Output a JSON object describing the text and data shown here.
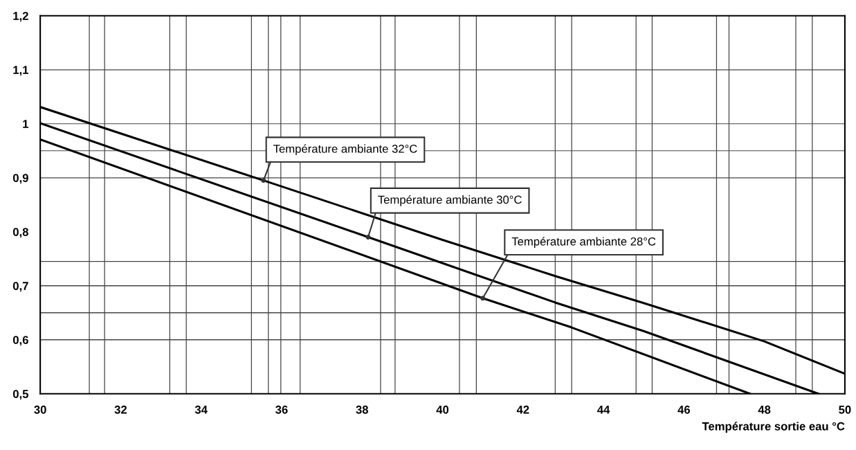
{
  "chart_data": {
    "type": "line",
    "xlabel": "Température sortie eau °C",
    "xlim": [
      30,
      50
    ],
    "ylim": [
      0.5,
      1.2
    ],
    "xticks": [
      30,
      32,
      34,
      36,
      38,
      40,
      42,
      44,
      46,
      48,
      50
    ],
    "yticks": [
      {
        "value": 0.5,
        "label": "0,5"
      },
      {
        "value": 0.6,
        "label": "0,6"
      },
      {
        "value": 0.7,
        "label": "0,7"
      },
      {
        "value": 0.8,
        "label": "0,8"
      },
      {
        "value": 0.9,
        "label": "0,9"
      },
      {
        "value": 1,
        "label": "1"
      },
      {
        "value": 1.1,
        "label": "1,1"
      },
      {
        "value": 1.2,
        "label": "1,2"
      }
    ],
    "grid": false,
    "marker": "none",
    "line_style": "solid",
    "series": [
      {
        "color": "#000000",
        "x": [
          30,
          35.55,
          40,
          42.8,
          45,
          48,
          50
        ],
        "values": [
          1.031,
          0.895,
          0.785,
          0.718,
          0.668,
          0.597,
          0.537
        ]
      },
      {
        "color": "#000000",
        "x": [
          30,
          38.15,
          42.8,
          45,
          49.34
        ],
        "values": [
          1.001,
          0.79,
          0.669,
          0.616,
          0.5
        ]
      },
      {
        "color": "#000000",
        "x": [
          30,
          41.0,
          43.2,
          47.64
        ],
        "values": [
          0.971,
          0.677,
          0.623,
          0.5
        ]
      }
    ],
    "annotations": [
      {
        "text": "Température ambiante 32°C",
        "x": 35.55,
        "y": 0.895
      },
      {
        "text": "Température ambiante 30°C",
        "x": 38.15,
        "y": 0.79
      },
      {
        "text": "Température ambiante 28°C",
        "x": 41.0,
        "y": 0.677
      }
    ],
    "ref_lines": [
      {
        "axis": "x",
        "value": 31.22,
        "color": "#444444"
      },
      {
        "axis": "x",
        "value": 31.6,
        "color": "#444444"
      },
      {
        "axis": "x",
        "value": 33.22,
        "color": "#444444"
      },
      {
        "axis": "x",
        "value": 33.63,
        "color": "#444444"
      },
      {
        "axis": "x",
        "value": 35.25,
        "color": "#444444"
      },
      {
        "axis": "x",
        "value": 35.67,
        "color": "#444444"
      },
      {
        "axis": "x",
        "value": 35.98,
        "color": "#444444"
      },
      {
        "axis": "x",
        "value": 36.46,
        "color": "#444444"
      },
      {
        "axis": "x",
        "value": 38.46,
        "color": "#444444"
      },
      {
        "axis": "x",
        "value": 38.82,
        "color": "#444444"
      },
      {
        "axis": "x",
        "value": 40.42,
        "color": "#444444"
      },
      {
        "axis": "x",
        "value": 40.84,
        "color": "#444444"
      },
      {
        "axis": "x",
        "value": 42.8,
        "color": "#444444"
      },
      {
        "axis": "x",
        "value": 43.21,
        "color": "#444444"
      },
      {
        "axis": "x",
        "value": 44.81,
        "color": "#444444"
      },
      {
        "axis": "x",
        "value": 45.21,
        "color": "#444444"
      },
      {
        "axis": "x",
        "value": 46.81,
        "color": "#444444"
      },
      {
        "axis": "x",
        "value": 47.12,
        "color": "#444444"
      },
      {
        "axis": "x",
        "value": 48.78,
        "color": "#444444"
      },
      {
        "axis": "x",
        "value": 49.19,
        "color": "#444444"
      },
      {
        "axis": "y",
        "value": 1.1,
        "color": "#444444"
      },
      {
        "axis": "y",
        "value": 1.0,
        "color": "#444444"
      },
      {
        "axis": "y",
        "value": 0.95,
        "color": "#444444"
      },
      {
        "axis": "y",
        "value": 0.9,
        "color": "#444444"
      },
      {
        "axis": "y",
        "value": 0.745,
        "color": "#444444"
      },
      {
        "axis": "y",
        "value": 0.7,
        "color": "#444444"
      },
      {
        "axis": "y",
        "value": 0.65,
        "color": "#444444"
      },
      {
        "axis": "y",
        "value": 0.6,
        "color": "#444444"
      }
    ]
  }
}
